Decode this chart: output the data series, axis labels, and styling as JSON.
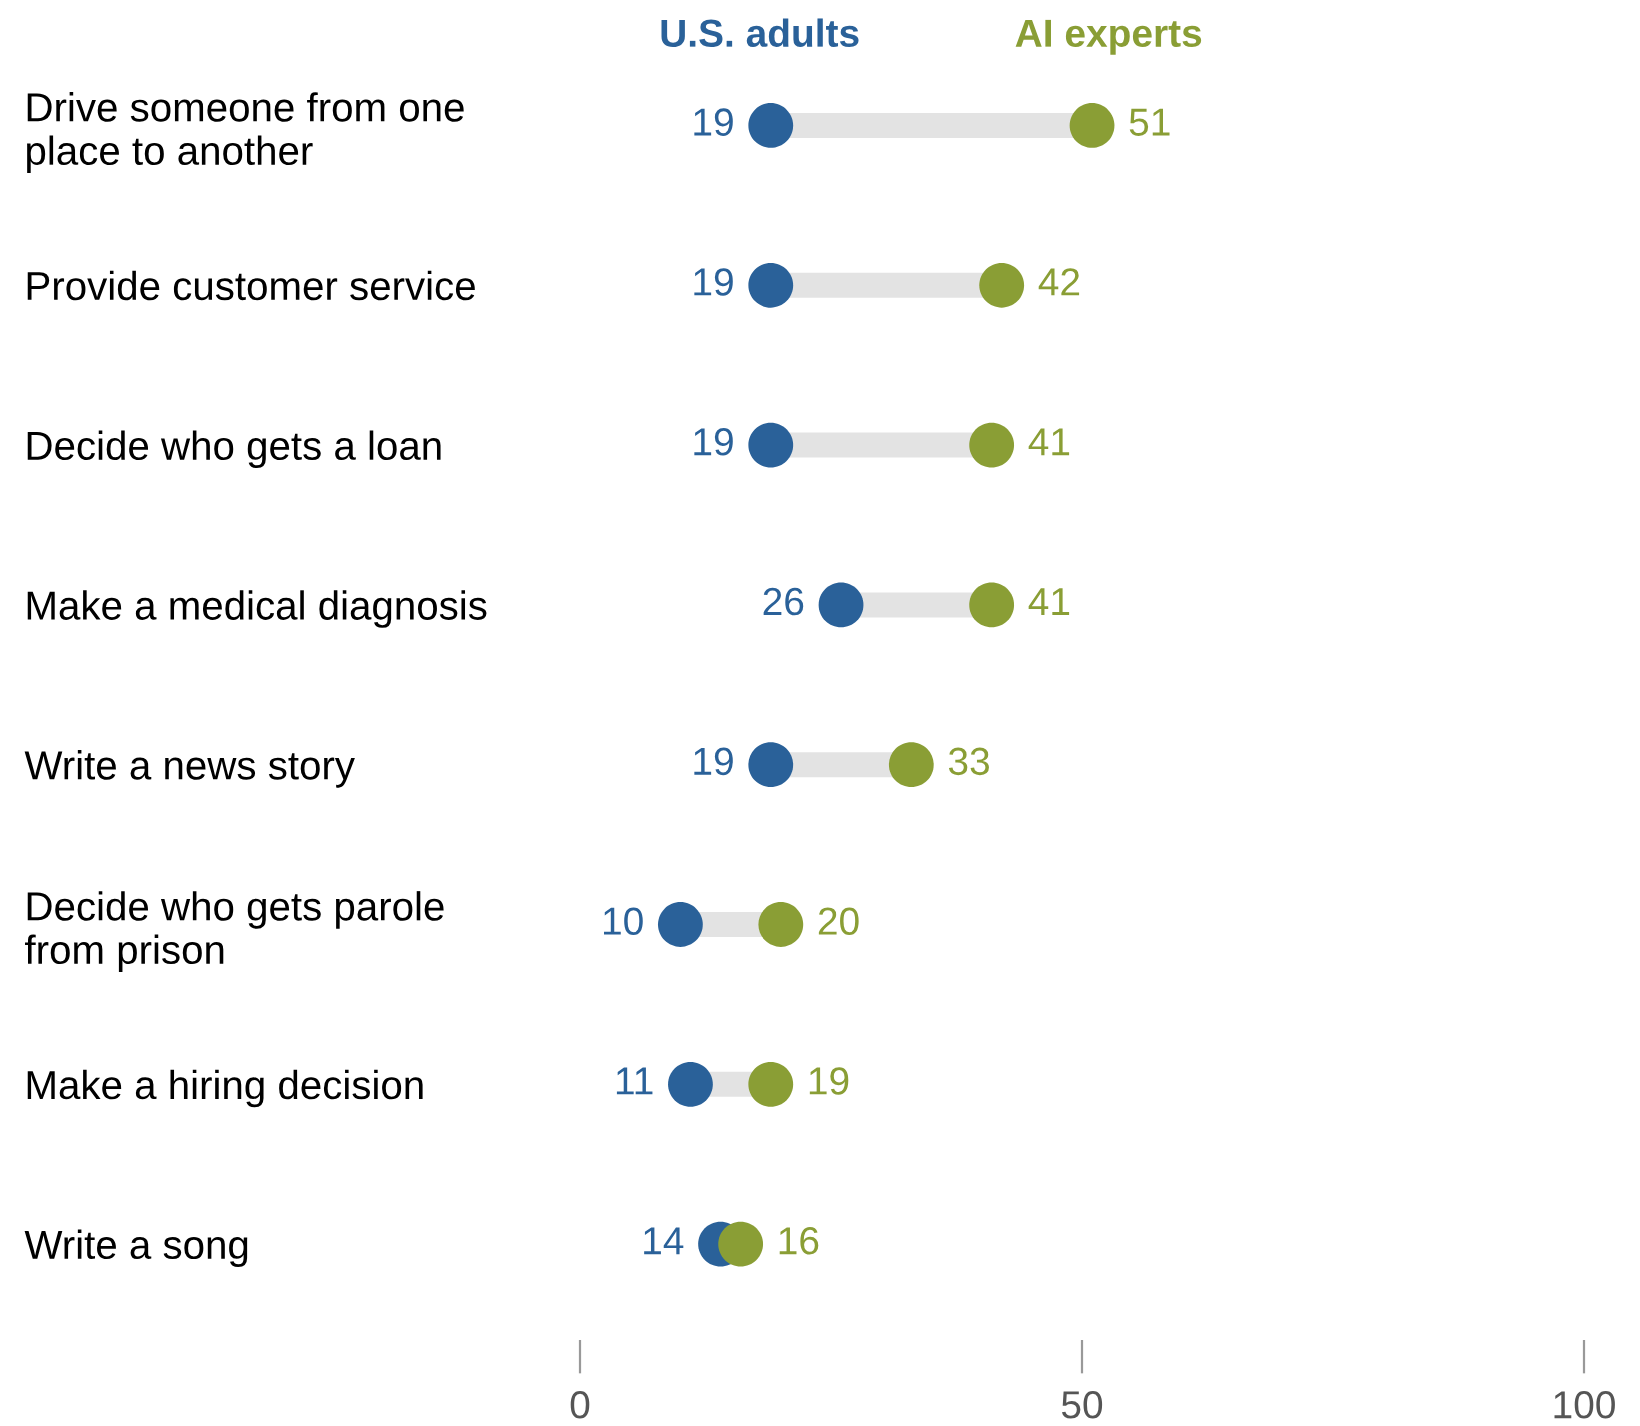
{
  "chart_data": {
    "type": "scatter",
    "orientation": "horizontal",
    "categories": [
      "Drive someone from one\nplace to another",
      "Provide customer service",
      "Decide who gets a loan",
      "Make a medical diagnosis",
      "Write a news story",
      "Decide who gets parole\nfrom prison",
      "Make a hiring decision",
      "Write a song"
    ],
    "series": [
      {
        "name": "U.S. adults",
        "color": "#2a6199",
        "values": [
          19,
          19,
          19,
          26,
          19,
          10,
          11,
          14
        ]
      },
      {
        "name": "AI experts",
        "color": "#8a9e35",
        "values": [
          51,
          42,
          41,
          41,
          33,
          20,
          19,
          16
        ]
      }
    ],
    "xlim": [
      0,
      100
    ],
    "xticks": [
      0,
      50,
      100
    ],
    "data_labels": true,
    "legend": "top",
    "marker": "circle",
    "grid": false
  }
}
